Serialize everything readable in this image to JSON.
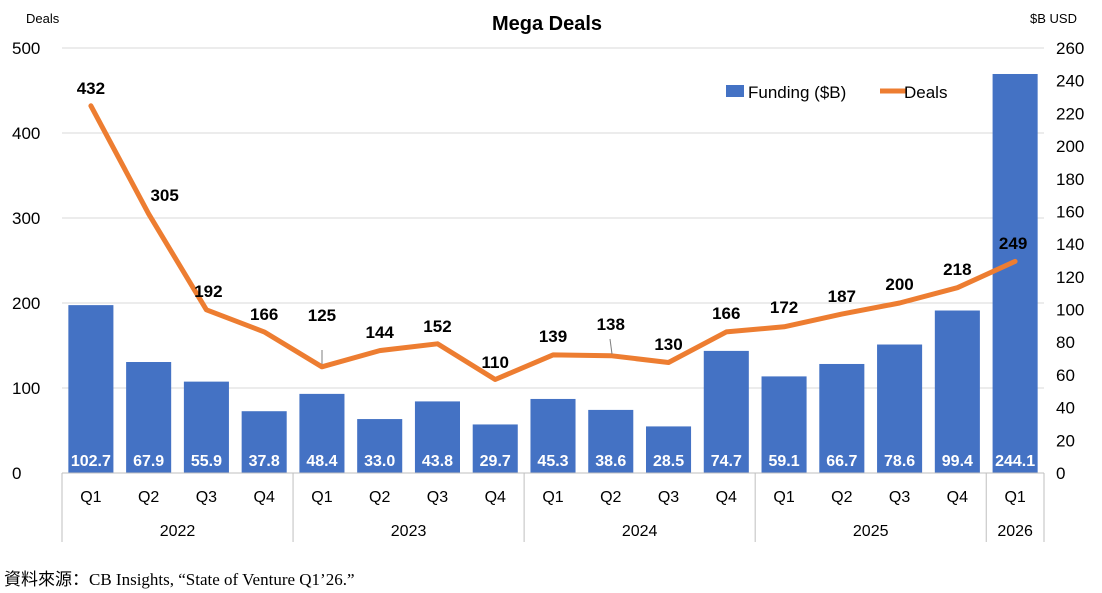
{
  "chart_data": {
    "type": "bar+line",
    "title": "Mega Deals",
    "left_axis_label": "Deals",
    "right_axis_label": "$B USD",
    "left_ylim": [
      0,
      500
    ],
    "left_ticks": [
      0,
      100,
      200,
      300,
      400,
      500
    ],
    "right_ylim": [
      0,
      260
    ],
    "right_ticks": [
      0,
      20,
      40,
      60,
      80,
      100,
      120,
      140,
      160,
      180,
      200,
      220,
      240,
      260
    ],
    "quarters": [
      "Q1",
      "Q2",
      "Q3",
      "Q4",
      "Q1",
      "Q2",
      "Q3",
      "Q4",
      "Q1",
      "Q2",
      "Q3",
      "Q4",
      "Q1",
      "Q2",
      "Q3",
      "Q4",
      "Q1"
    ],
    "years": [
      {
        "label": "2022",
        "count": 4
      },
      {
        "label": "2023",
        "count": 4
      },
      {
        "label": "2024",
        "count": 4
      },
      {
        "label": "2025",
        "count": 4
      },
      {
        "label": "2026",
        "count": 1
      }
    ],
    "series": [
      {
        "name": "Funding ($B)",
        "type": "bar",
        "axis": "right",
        "color": "#4472C4",
        "values": [
          102.7,
          67.9,
          55.9,
          37.8,
          48.4,
          33.0,
          43.8,
          29.7,
          45.3,
          38.6,
          28.5,
          74.7,
          59.1,
          66.7,
          78.6,
          99.4,
          244.1
        ],
        "labels": [
          "102.7",
          "67.9",
          "55.9",
          "37.8",
          "48.4",
          "33.0",
          "43.8",
          "29.7",
          "45.3",
          "38.6",
          "28.5",
          "74.7",
          "59.1",
          "66.7",
          "78.6",
          "99.4",
          "244.1"
        ]
      },
      {
        "name": "Deals",
        "type": "line",
        "axis": "left",
        "color": "#ED7D31",
        "values": [
          432,
          305,
          192,
          166,
          125,
          144,
          152,
          110,
          139,
          138,
          130,
          166,
          172,
          187,
          200,
          218,
          249
        ],
        "labels": [
          "432",
          "305",
          "192",
          "166",
          "125",
          "144",
          "152",
          "110",
          "139",
          "138",
          "130",
          "166",
          "172",
          "187",
          "200",
          "218",
          "249"
        ]
      }
    ],
    "legend_position": "top-right"
  },
  "source": "資料來源：CB Insights, “State of Venture Q1’26.”"
}
